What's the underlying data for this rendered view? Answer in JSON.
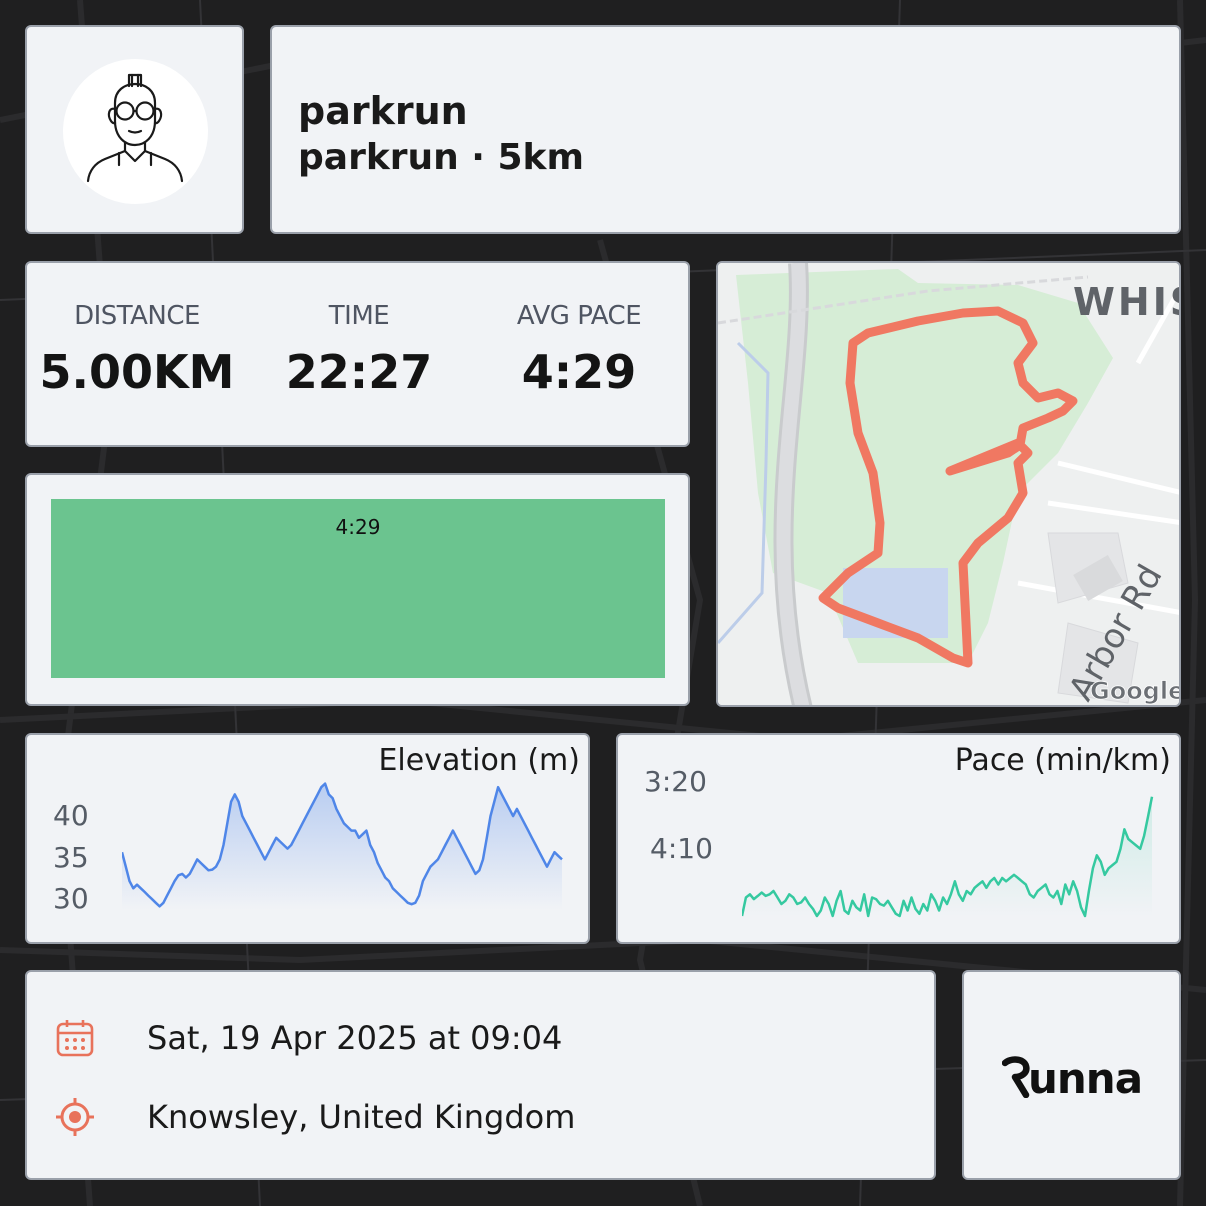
{
  "activity": {
    "title": "parkrun",
    "subtitle": "parkrun · 5km"
  },
  "stats": [
    {
      "label": "DISTANCE",
      "value": "5.00KM"
    },
    {
      "label": "TIME",
      "value": "22:27"
    },
    {
      "label": "AVG PACE",
      "value": "4:29"
    }
  ],
  "splits": {
    "values": [
      "4:29"
    ],
    "bar_color": "#6bc48f"
  },
  "map": {
    "street_labels": [
      "WHIS",
      "Arbor Rd"
    ],
    "attribution": "Google",
    "route_color": "#f07862"
  },
  "elevation": {
    "title": "Elevation (m)",
    "y_ticks": [
      "40",
      "35",
      "30"
    ],
    "line_color": "#4f86e8",
    "profile": [
      35,
      33,
      31,
      30,
      30.5,
      30,
      29.5,
      29,
      28.5,
      28,
      27.5,
      28,
      29,
      30,
      31,
      31.8,
      32,
      31.5,
      32,
      33,
      34,
      33.5,
      33,
      32.5,
      32.6,
      33,
      34,
      36,
      39,
      42,
      43,
      42,
      40,
      39,
      38,
      37,
      36,
      35,
      34,
      35,
      36,
      37,
      36.5,
      36,
      35.5,
      36,
      37,
      38,
      39,
      40,
      41,
      42,
      43,
      44,
      44.5,
      43,
      42.5,
      41,
      40,
      39,
      38.5,
      38,
      38,
      37,
      37.5,
      38,
      36,
      35,
      33.5,
      32.5,
      31.5,
      31,
      30,
      29.5,
      29,
      28.5,
      28,
      27.8,
      28,
      29,
      31,
      32,
      33,
      33.5,
      34,
      35,
      36,
      37,
      38,
      37,
      36,
      35,
      34,
      33,
      32,
      32.5,
      34,
      37,
      40,
      42,
      44,
      43,
      42,
      41,
      40,
      41,
      40,
      39,
      38,
      37,
      36,
      35,
      34,
      33,
      34,
      35,
      34.5,
      34
    ],
    "ylim": [
      27,
      45
    ]
  },
  "pace": {
    "title": "Pace (min/km)",
    "y_ticks": [
      "3:20",
      "4:10"
    ],
    "line_color": "#35c9a0",
    "profile": [
      265,
      248,
      246,
      249,
      247,
      245,
      247,
      246,
      244,
      248,
      252,
      250,
      246,
      248,
      252,
      251,
      248,
      252,
      255,
      265,
      256,
      248,
      252,
      262,
      250,
      244,
      256,
      258,
      250,
      254,
      256,
      246,
      262,
      248,
      249,
      252,
      253,
      250,
      254,
      258,
      266,
      250,
      256,
      248,
      255,
      258,
      252,
      256,
      246,
      250,
      256,
      248,
      252,
      246,
      238,
      246,
      250,
      244,
      246,
      242,
      240,
      238,
      242,
      238,
      236,
      240,
      236,
      238,
      236,
      234,
      236,
      238,
      240,
      246,
      248,
      244,
      242,
      240,
      246,
      248,
      244,
      252,
      240,
      246,
      238,
      244,
      254,
      260,
      244,
      230,
      222,
      226,
      234,
      230,
      228,
      226,
      218,
      206,
      212,
      214,
      216,
      218,
      210,
      198,
      186
    ],
    "ylim": [
      260,
      180
    ]
  },
  "details": {
    "date": "Sat, 19 Apr 2025 at 09:04",
    "location": "Knowsley, United Kingdom",
    "icon_color": "#e8725b"
  },
  "brand": {
    "name": "Runna"
  }
}
